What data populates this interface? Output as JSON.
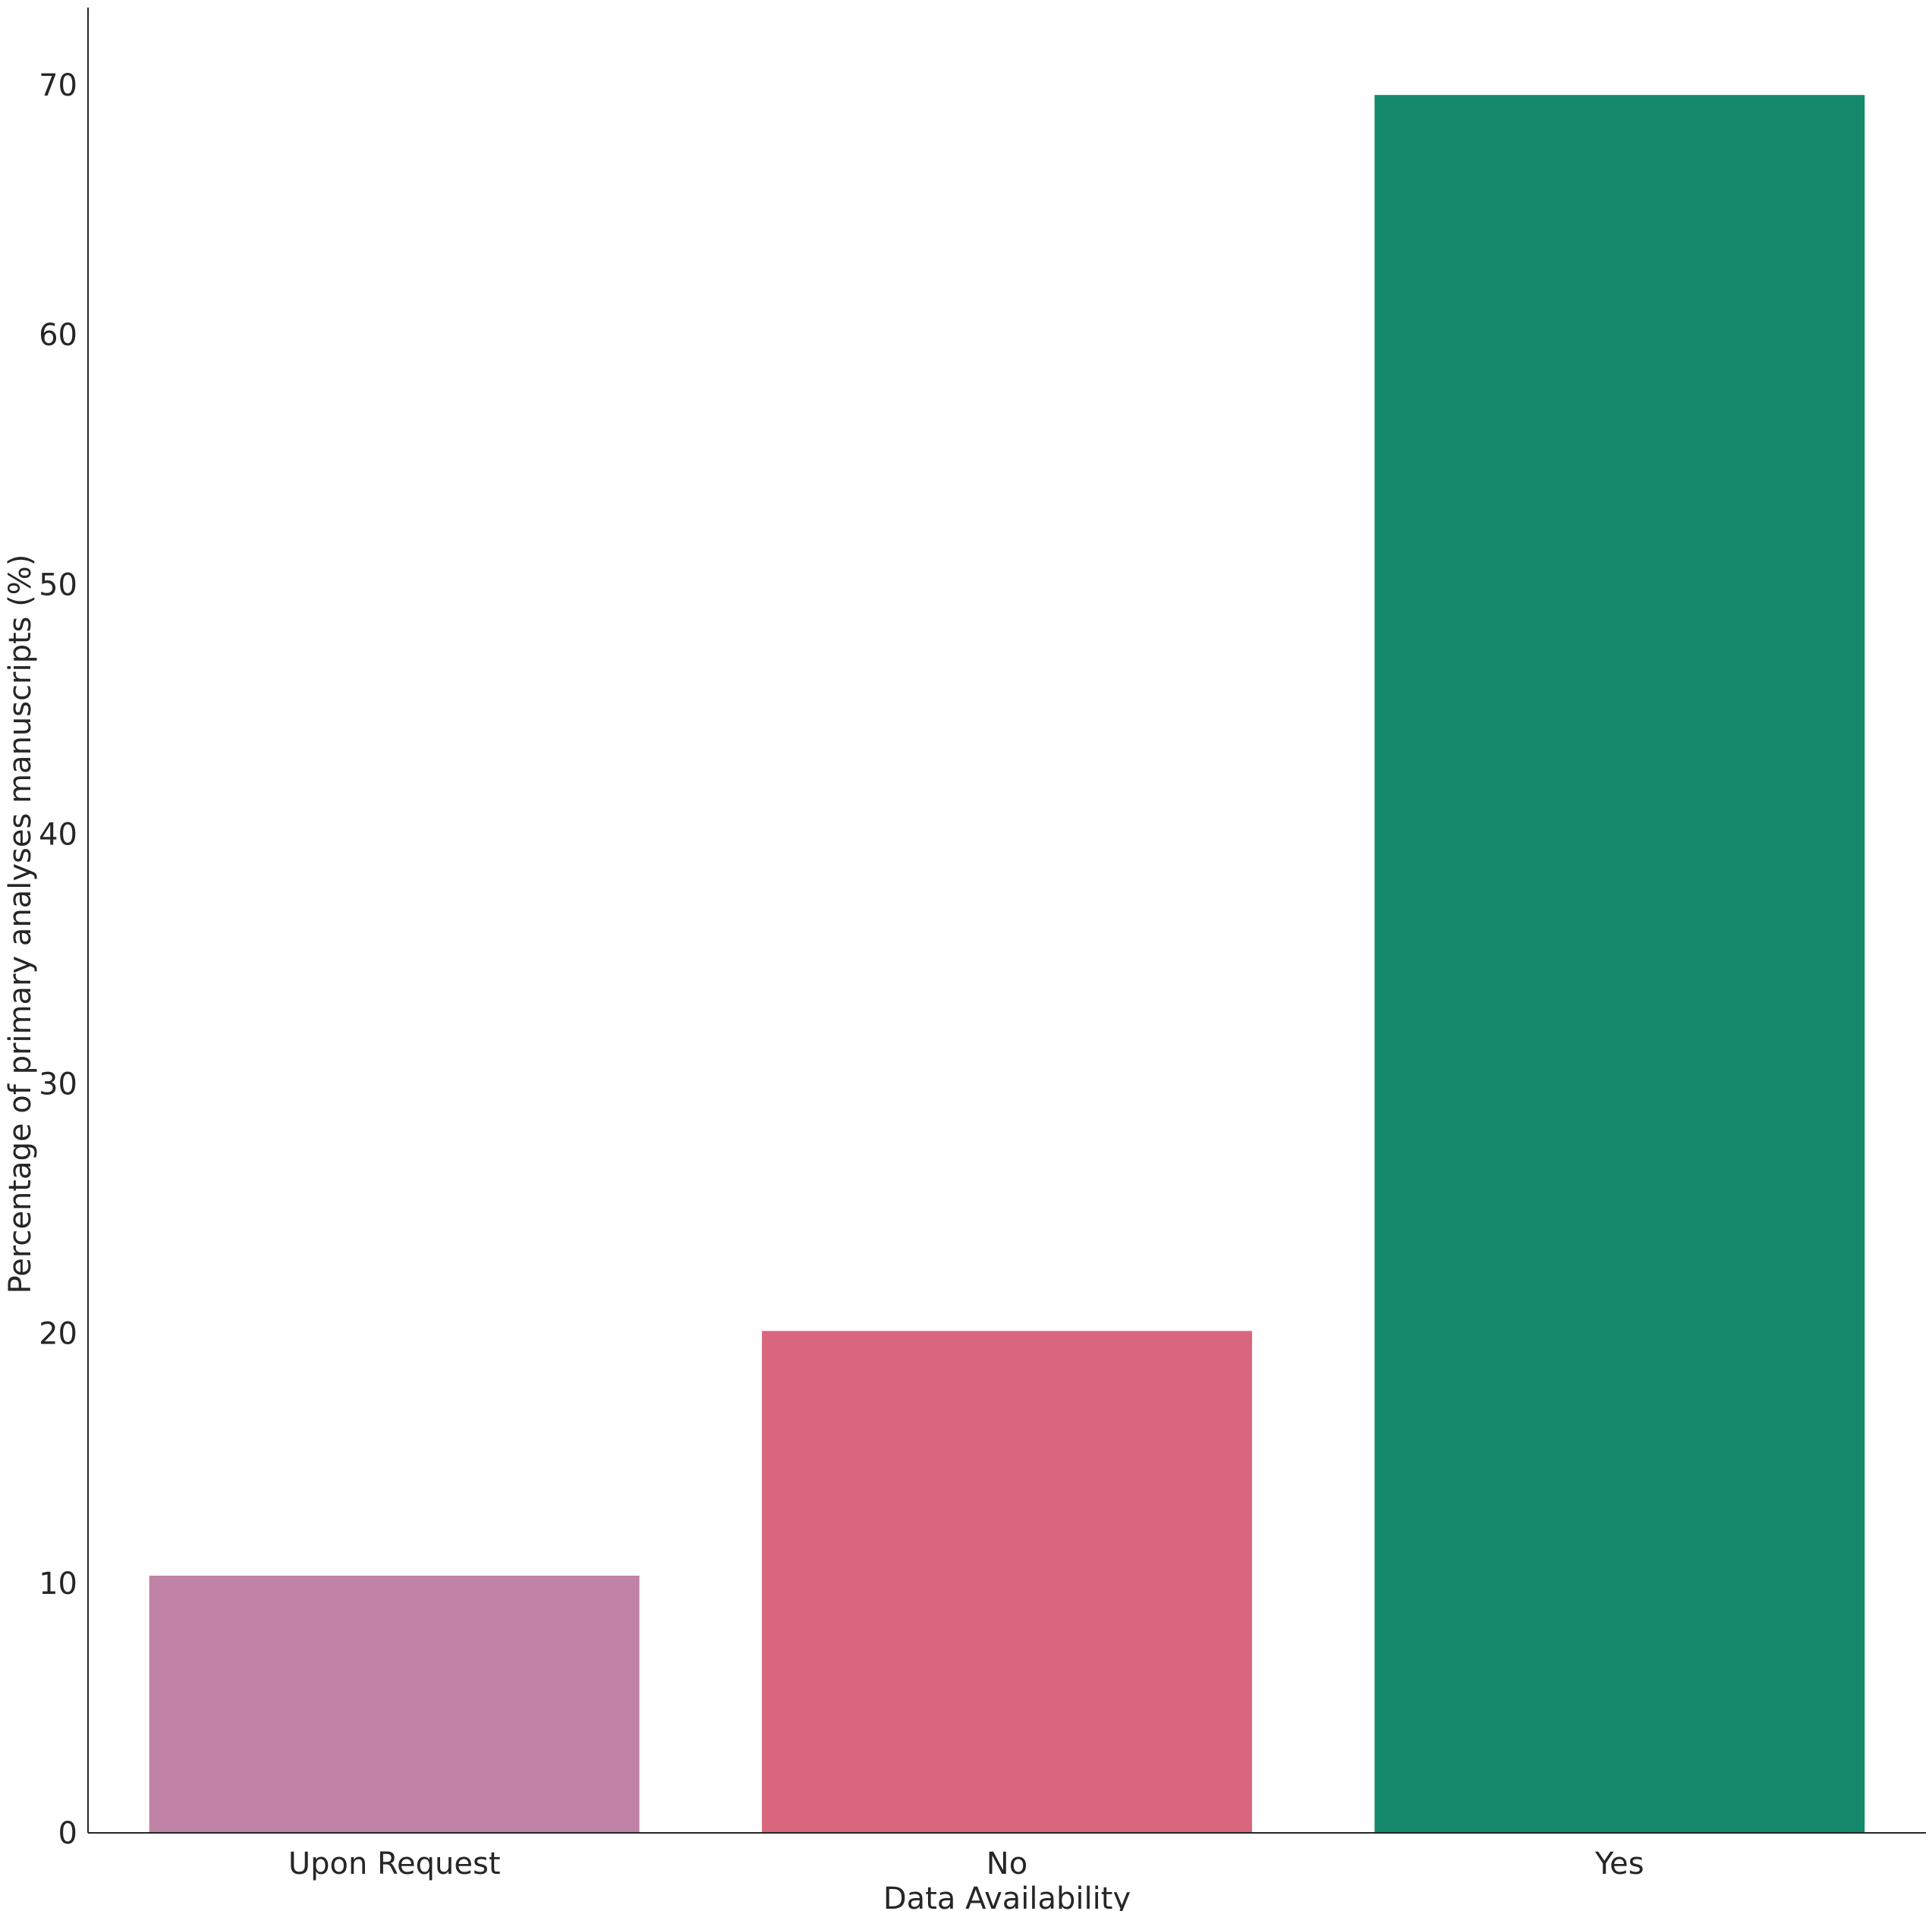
{
  "chart_data": {
    "type": "bar",
    "categories": [
      "Upon Request",
      "No",
      "Yes"
    ],
    "values": [
      10.3,
      20.1,
      69.6
    ],
    "colors": [
      "#c082a5",
      "#d8667c",
      "#148a6b"
    ],
    "xlabel": "Data Availability",
    "ylabel": "Percentage of primary analyses manuscripts (%)",
    "ylim": [
      0,
      73.1
    ],
    "yticks": [
      0,
      10,
      20,
      30,
      40,
      50,
      60,
      70
    ],
    "ytick_labels": [
      "0",
      "10",
      "20",
      "30",
      "40",
      "50",
      "60",
      "70"
    ],
    "grid": false,
    "legend": "none"
  }
}
